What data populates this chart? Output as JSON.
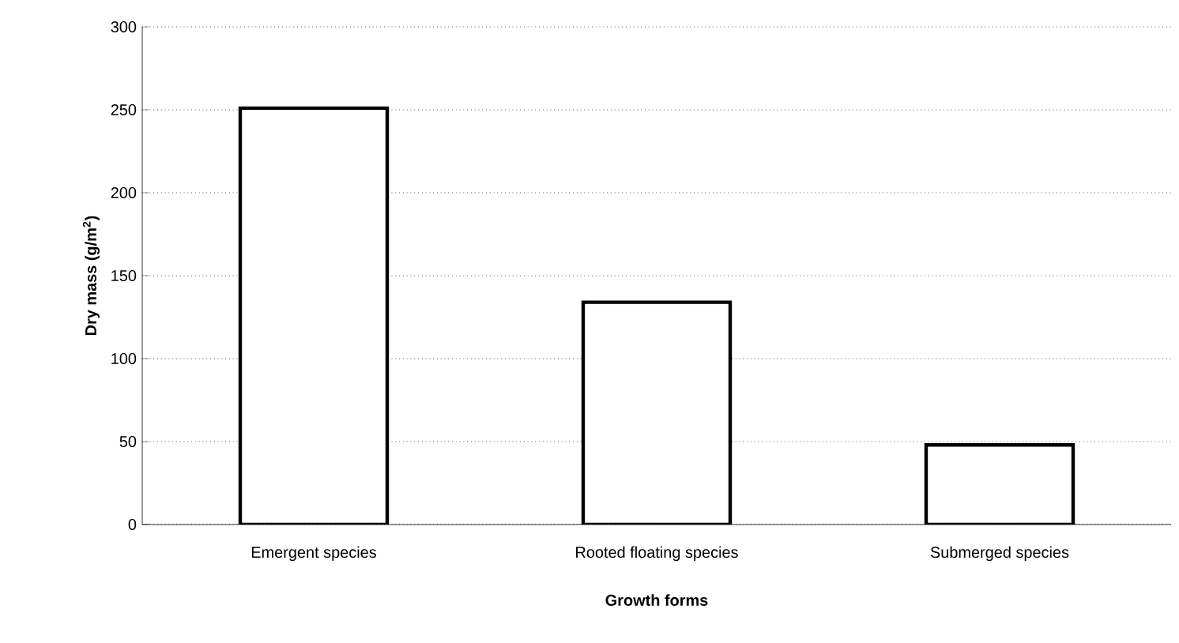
{
  "chart_data": {
    "type": "bar",
    "xlabel": "Growth forms",
    "ylabel": "Dry mass (g/m$^{2}$)",
    "categories": [
      "Emergent species",
      "Rooted floating species",
      "Submerged species"
    ],
    "values": [
      251,
      134,
      48
    ],
    "color": "#ffffff",
    "ylim": [
      0,
      300
    ],
    "yticks": [
      0,
      50,
      100,
      150,
      200,
      250,
      300
    ],
    "grid": "y"
  }
}
